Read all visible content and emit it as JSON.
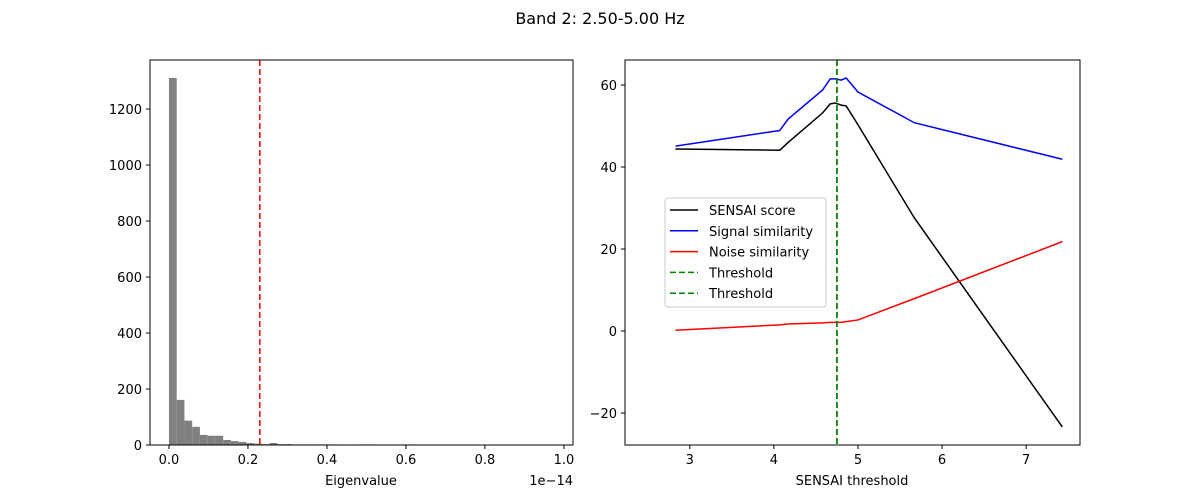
{
  "chart_data": [
    {
      "type": "bar",
      "title": "",
      "suptitle": "Band 2: 2.50-5.00 Hz",
      "xlabel": "Eigenvalue",
      "ylabel": "",
      "x_offset_text": "1e−14",
      "xlim": [
        -0.048,
        1.023
      ],
      "ylim": [
        0,
        1375
      ],
      "xticks": [
        0.0,
        0.2,
        0.4,
        0.6,
        0.8,
        1.0
      ],
      "xtick_labels": [
        "0.0",
        "0.2",
        "0.4",
        "0.6",
        "0.8",
        "1.0"
      ],
      "yticks": [
        0,
        200,
        400,
        600,
        800,
        1000,
        1200
      ],
      "bin_start": 0.0,
      "bin_width": 0.0196,
      "values": [
        1311,
        161,
        87,
        65,
        36,
        33,
        33,
        18,
        14,
        11,
        7,
        5,
        3,
        7,
        3,
        3,
        2,
        2,
        2,
        2,
        2,
        2,
        1,
        0,
        2,
        2,
        2,
        0,
        0,
        0,
        2,
        2,
        1,
        0,
        0,
        0,
        0,
        1,
        1,
        1,
        1,
        0,
        0,
        0,
        0,
        0,
        1,
        0,
        1,
        0
      ],
      "bar_color": "#808080",
      "threshold": {
        "x": 0.23,
        "color": "#ff0000",
        "style": "dashed"
      },
      "grid": false
    },
    {
      "type": "line",
      "xlabel": "SENSAI threshold",
      "ylabel": "",
      "xlim": [
        2.23,
        7.64
      ],
      "ylim": [
        -27.8,
        66.1
      ],
      "xticks": [
        3,
        4,
        5,
        6,
        7
      ],
      "yticks": [
        -20,
        0,
        20,
        40,
        60
      ],
      "ytick_labels": [
        "−20",
        "0",
        "20",
        "40",
        "60"
      ],
      "legend_position": "center-left",
      "grid": false,
      "series": [
        {
          "name": "SENSAI score",
          "color": "#000000",
          "x": [
            2.83,
            4.07,
            4.17,
            4.58,
            4.67,
            4.73,
            4.8,
            4.86,
            5.0,
            5.67,
            7.43
          ],
          "y": [
            44.4,
            44.1,
            46.0,
            53.2,
            55.4,
            55.6,
            55.1,
            54.9,
            50.3,
            27.6,
            -23.4
          ]
        },
        {
          "name": "Signal similarity",
          "color": "#0000ff",
          "x": [
            2.83,
            4.07,
            4.17,
            4.58,
            4.67,
            4.73,
            4.8,
            4.86,
            5.0,
            5.67,
            7.43
          ],
          "y": [
            45.1,
            48.9,
            51.7,
            58.8,
            61.5,
            61.5,
            61.2,
            61.7,
            58.3,
            50.8,
            41.9
          ]
        },
        {
          "name": "Noise similarity",
          "color": "#ff0000",
          "x": [
            2.83,
            4.07,
            4.17,
            4.58,
            4.67,
            4.73,
            4.8,
            4.86,
            5.0,
            5.67,
            7.43
          ],
          "y": [
            0.2,
            1.5,
            1.7,
            2.0,
            2.1,
            2.1,
            2.1,
            2.3,
            2.7,
            7.9,
            21.8
          ]
        }
      ],
      "thresholds": [
        {
          "name": "Threshold",
          "x": 4.75,
          "color": "#008000",
          "style": "dashed"
        },
        {
          "name": "Threshold",
          "x": 4.75,
          "color": "#008000",
          "style": "dashed"
        }
      ]
    }
  ]
}
